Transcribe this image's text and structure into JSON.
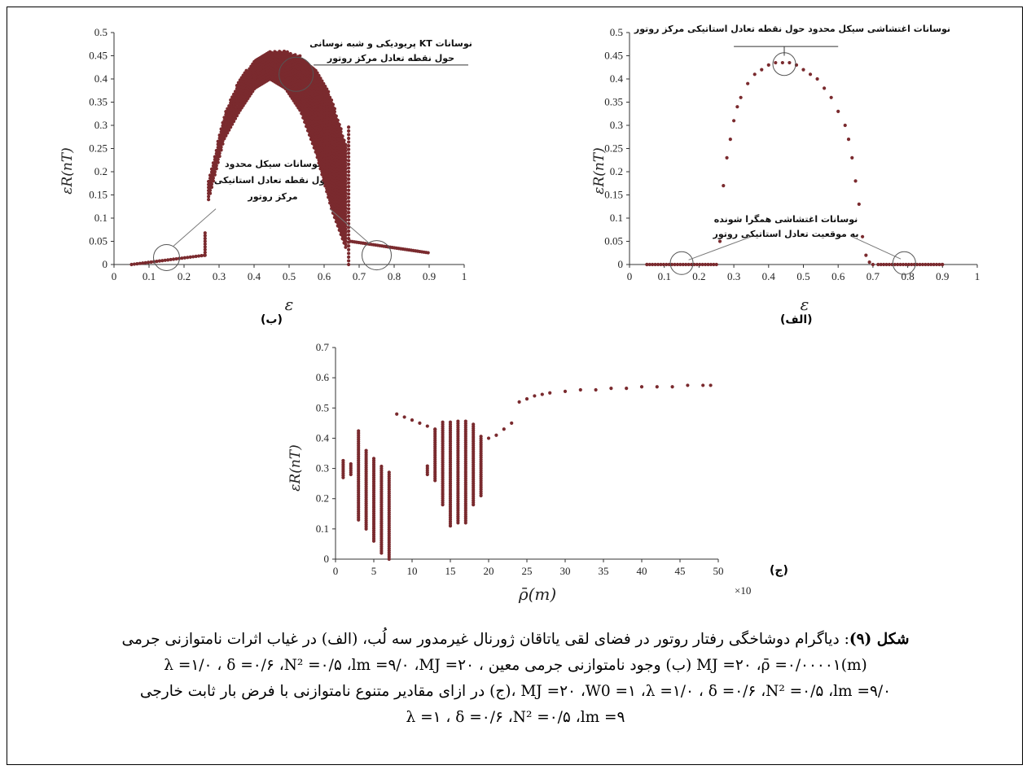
{
  "panels": {
    "b": {
      "label": "(ب)",
      "xlabel": "ε",
      "ylabel": "εR(nT)",
      "annotation_top": [
        "نوسانات KT پریودیکی و شبه نوسانی",
        "حول نقطه تعادل مرکز روتور"
      ],
      "annotation_mid": [
        "نوسانات سیکل محدود",
        "حول نقطه تعادل استاتیکی",
        "مرکز روتور"
      ],
      "xticks": [
        "0",
        "0.1",
        "0.2",
        "0.3",
        "0.4",
        "0.5",
        "0.6",
        "0.7",
        "0.8",
        "0.9",
        "1"
      ],
      "yticks": [
        "0",
        "0.05",
        "0.1",
        "0.15",
        "0.2",
        "0.25",
        "0.3",
        "0.35",
        "0.4",
        "0.45",
        "0.5"
      ]
    },
    "alef": {
      "label": "(الف)",
      "xlabel": "ε",
      "ylabel": "εR(nT)",
      "annotation_top": [
        "نوسانات اغتشاشی سیکل محدود حول نقطه تعادل استاتیکی مرکز روتور"
      ],
      "annotation_mid": [
        "نوسانات اغتشاشی همگرا شونده",
        "به موقعیت تعادل استاتیکی روتور"
      ],
      "xticks": [
        "0",
        "0.1",
        "0.2",
        "0.3",
        "0.4",
        "0.5",
        "0.6",
        "0.7",
        "0.8",
        "0.9",
        "1"
      ],
      "yticks": [
        "0",
        "0.05",
        "0.1",
        "0.15",
        "0.2",
        "0.25",
        "0.3",
        "0.35",
        "0.4",
        "0.45",
        "0.5"
      ]
    },
    "jim": {
      "label": "(ج)",
      "xlabel": "ρ̄(m)",
      "ylabel": "εR(nT)",
      "multiplier": "×10",
      "xticks": [
        "0",
        "5",
        "10",
        "15",
        "20",
        "25",
        "30",
        "35",
        "40",
        "45",
        "50"
      ],
      "yticks": [
        "0",
        "0.1",
        "0.2",
        "0.3",
        "0.4",
        "0.5",
        "0.6",
        "0.7"
      ]
    }
  },
  "caption": {
    "label": "شکل (۹)",
    "line1": ": دیاگرام دوشاخگی رفتار روتور در فضای لقی یاتاقان ژورنال غیرمدور سه لُب، (الف) در غیاب اثرات نامتوازنی جرمی",
    "line2": "MJ =۲۰ ،ρ̄ =۰/۰۰۰۰۱(m) (ب) وجود نامتوازنی جرمی معین ، λ =۱/۰ ، δ =۰/۶ ،N² =۰/۵ ،lm =۹/۰ ،MJ =۲۰",
    "line3": "MJ =۲۰ ،W0 =۱ ،λ =۱/۰ ، δ =۰/۶ ،N² =۰/۵ ،lm =۹/۰ ،(ج) در ازای مقادیر متنوع نامتوازنی با فرض بار ثابت خارجی",
    "line4": "λ =۱ ، δ =۰/۶ ،N² =۰/۵ ،lm =۹"
  },
  "chart_data": [
    {
      "panel": "(ب)",
      "type": "scatter",
      "xlabel": "ε",
      "ylabel": "εR(nT)",
      "xlim": [
        0,
        1
      ],
      "ylim": [
        0,
        0.5
      ],
      "color": "#7a2a2e",
      "branches": [
        {
          "x_range": [
            0.05,
            0.26
          ],
          "y": "0.0 → 0.02 (limit cycle, single branch)"
        },
        {
          "x": 0.26,
          "y_range": [
            0.02,
            0.07
          ]
        },
        {
          "x_range": [
            0.27,
            0.66
          ],
          "y_upper": [
            0.18,
            0.32,
            0.4,
            0.44,
            0.46,
            0.46,
            0.45,
            0.42,
            0.36,
            0.25
          ],
          "y_lower": [
            0.14,
            0.27,
            0.33,
            0.38,
            0.4,
            0.38,
            0.33,
            0.24,
            0.12,
            0.03
          ],
          "note": "KT periodic and quasi-periodic band"
        },
        {
          "x_range": [
            0.67,
            0.9
          ],
          "y": "0.06 → 0.02"
        }
      ]
    },
    {
      "panel": "(الف)",
      "type": "scatter",
      "xlabel": "ε",
      "ylabel": "εR(nT)",
      "xlim": [
        0,
        1
      ],
      "ylim": [
        0,
        0.5
      ],
      "color": "#7a2a2e",
      "x": [
        0.05,
        0.26,
        0.27,
        0.28,
        0.29,
        0.3,
        0.31,
        0.32,
        0.34,
        0.36,
        0.38,
        0.4,
        0.42,
        0.44,
        0.46,
        0.48,
        0.5,
        0.52,
        0.54,
        0.56,
        0.58,
        0.6,
        0.62,
        0.63,
        0.64,
        0.65,
        0.66,
        0.67,
        0.68,
        0.69,
        0.7,
        0.9
      ],
      "y": [
        0.0,
        0.05,
        0.17,
        0.23,
        0.27,
        0.31,
        0.34,
        0.36,
        0.39,
        0.41,
        0.42,
        0.43,
        0.435,
        0.435,
        0.435,
        0.43,
        0.42,
        0.41,
        0.4,
        0.38,
        0.36,
        0.33,
        0.3,
        0.27,
        0.23,
        0.18,
        0.13,
        0.06,
        0.02,
        0.005,
        0.0,
        0.0
      ]
    },
    {
      "panel": "(ج)",
      "type": "scatter",
      "xlabel": "ρ̄(m)",
      "ylabel": "εR(nT)",
      "xlim": [
        0,
        50
      ],
      "ylim": [
        0,
        0.7
      ],
      "color": "#7a2a2e",
      "columns": [
        {
          "x": 1,
          "y_range": [
            0.27,
            0.33
          ]
        },
        {
          "x": 2,
          "y_range": [
            0.28,
            0.32
          ]
        },
        {
          "x": 3,
          "y_range": [
            0.13,
            0.43
          ]
        },
        {
          "x": 4,
          "y_range": [
            0.1,
            0.36
          ]
        },
        {
          "x": 5,
          "y_range": [
            0.06,
            0.34
          ]
        },
        {
          "x": 6,
          "y_range": [
            0.02,
            0.31
          ]
        },
        {
          "x": 7,
          "y_range": [
            0.0,
            0.29
          ]
        },
        {
          "x": 12,
          "y_range": [
            0.28,
            0.31
          ]
        },
        {
          "x": 13,
          "y_range": [
            0.26,
            0.43
          ]
        },
        {
          "x": 14,
          "y_range": [
            0.18,
            0.46
          ]
        },
        {
          "x": 15,
          "y_range": [
            0.11,
            0.46
          ]
        },
        {
          "x": 16,
          "y_range": [
            0.12,
            0.46
          ]
        },
        {
          "x": 17,
          "y_range": [
            0.12,
            0.46
          ]
        },
        {
          "x": 18,
          "y_range": [
            0.18,
            0.45
          ]
        },
        {
          "x": 19,
          "y_range": [
            0.21,
            0.41
          ]
        }
      ],
      "single_branch_x": [
        8,
        9,
        10,
        11,
        12,
        13,
        20,
        21,
        22,
        23,
        24,
        25,
        26,
        27,
        28,
        30,
        32,
        34,
        36,
        38,
        40,
        42,
        44,
        46,
        48,
        49
      ],
      "single_branch_y": [
        0.48,
        0.47,
        0.46,
        0.45,
        0.44,
        0.43,
        0.4,
        0.41,
        0.43,
        0.45,
        0.52,
        0.53,
        0.54,
        0.545,
        0.55,
        0.555,
        0.56,
        0.56,
        0.565,
        0.565,
        0.57,
        0.57,
        0.57,
        0.575,
        0.575,
        0.575
      ]
    }
  ]
}
